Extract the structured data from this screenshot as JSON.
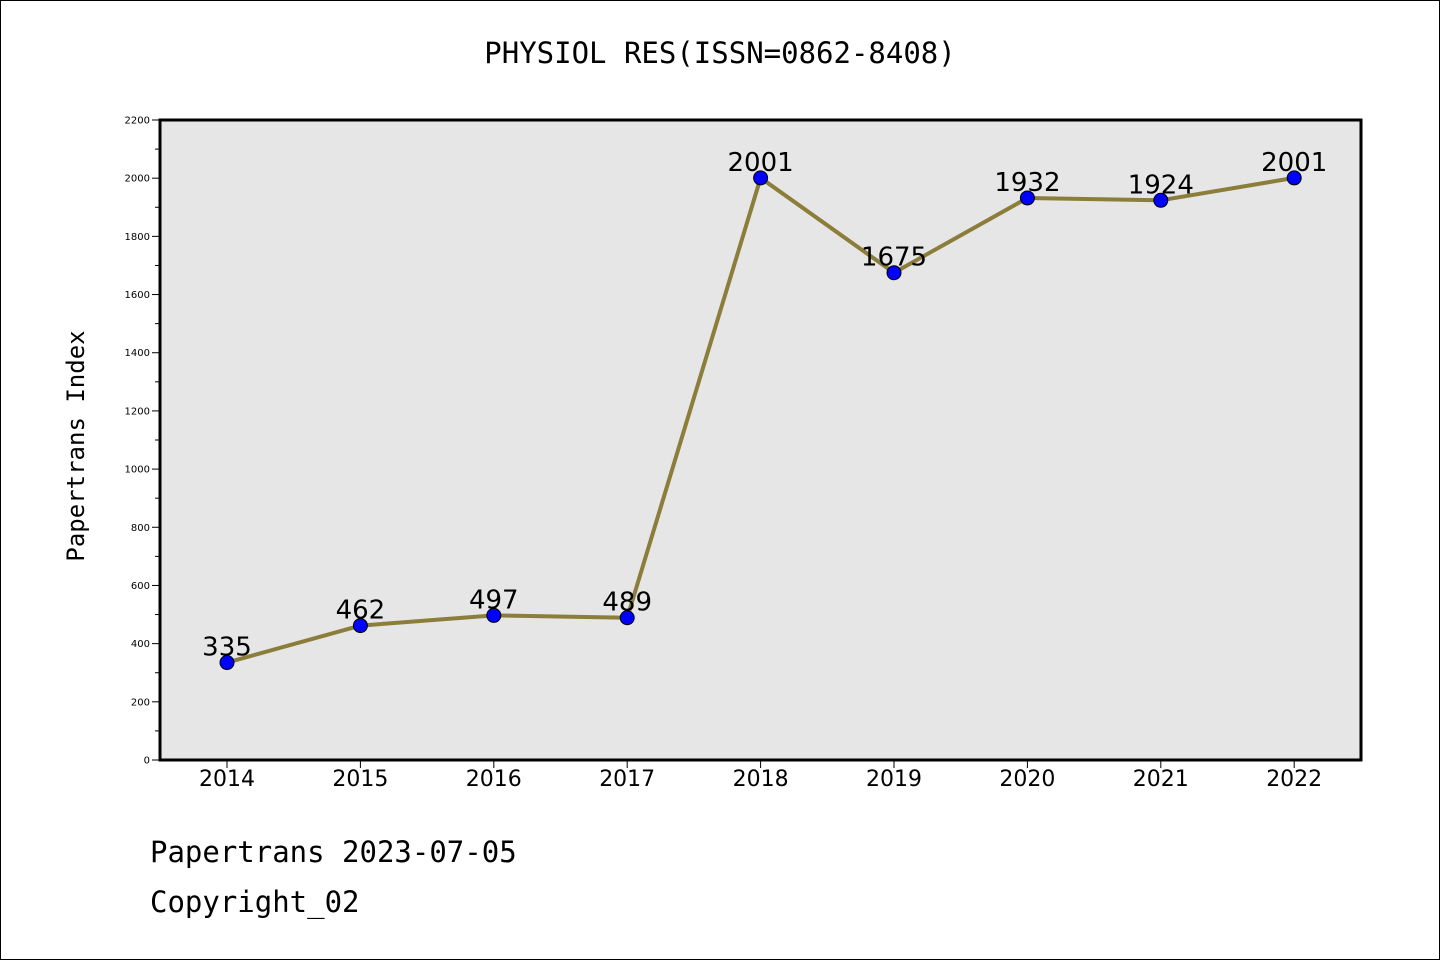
{
  "title": "PHYSIOL RES(ISSN=0862-8408)",
  "footer": {
    "date_line": "Papertrans 2023-07-05",
    "copyright": "Copyright_02"
  },
  "colors": {
    "plot_bg": "#e6e6e6",
    "line": "#8b7d3a",
    "marker": "#0000ff"
  },
  "chart_data": {
    "type": "line",
    "title": "PHYSIOL RES(ISSN=0862-8408)",
    "xlabel": "",
    "ylabel": "Papertrans Index",
    "categories": [
      "2014",
      "2015",
      "2016",
      "2017",
      "2018",
      "2019",
      "2020",
      "2021",
      "2022"
    ],
    "values": [
      335,
      462,
      497,
      489,
      2001,
      1675,
      1932,
      1924,
      2001
    ],
    "data_labels": [
      "335",
      "462",
      "497",
      "489",
      "2001",
      "1675",
      "1932",
      "1924",
      "2001"
    ],
    "ylim": [
      0,
      2200
    ],
    "yticks": [
      0,
      200,
      400,
      600,
      800,
      1000,
      1200,
      1400,
      1600,
      1800,
      2000,
      2200
    ],
    "grid": false,
    "legend": "none"
  }
}
